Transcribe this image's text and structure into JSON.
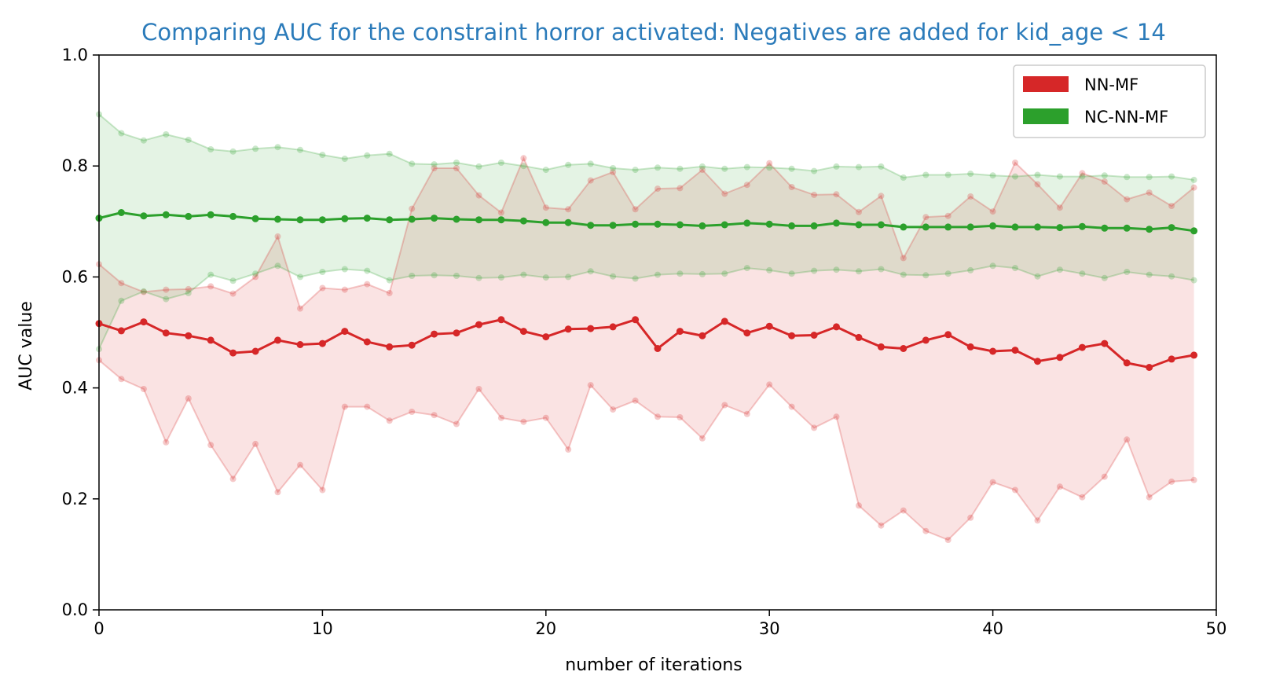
{
  "colors": {
    "nn_mf": "#d62728",
    "nc_nn_mf": "#2ca02c",
    "title": "#2b7bba",
    "axis": "#000000"
  },
  "chart_data": {
    "type": "line",
    "title": "Comparing AUC for the constraint horror activated: Negatives are added for kid_age < 14",
    "xlabel": "number of iterations",
    "ylabel": "AUC value",
    "xlim": [
      0,
      50
    ],
    "ylim": [
      0.0,
      1.0
    ],
    "xticks": [
      0,
      10,
      20,
      30,
      40,
      50
    ],
    "xtick_labels": [
      "0",
      "10",
      "20",
      "30",
      "40",
      "50"
    ],
    "yticks": [
      0.0,
      0.2,
      0.4,
      0.6,
      0.8,
      1.0
    ],
    "ytick_labels": [
      "0.0",
      "0.2",
      "0.4",
      "0.6",
      "0.8",
      "1.0"
    ],
    "grid": false,
    "legend_position": "top-right",
    "x": [
      0,
      1,
      2,
      3,
      4,
      5,
      6,
      7,
      8,
      9,
      10,
      11,
      12,
      13,
      14,
      15,
      16,
      17,
      18,
      19,
      20,
      21,
      22,
      23,
      24,
      25,
      26,
      27,
      28,
      29,
      30,
      31,
      32,
      33,
      34,
      35,
      36,
      37,
      38,
      39,
      40,
      41,
      42,
      43,
      44,
      45,
      46,
      47,
      48,
      49
    ],
    "series": [
      {
        "name": "NN-MF",
        "color": "#d62728",
        "mean": [
          0.516,
          0.503,
          0.519,
          0.499,
          0.494,
          0.486,
          0.463,
          0.466,
          0.486,
          0.478,
          0.48,
          0.502,
          0.483,
          0.474,
          0.477,
          0.497,
          0.499,
          0.514,
          0.523,
          0.502,
          0.492,
          0.506,
          0.507,
          0.51,
          0.523,
          0.471,
          0.502,
          0.494,
          0.52,
          0.499,
          0.511,
          0.494,
          0.495,
          0.51,
          0.491,
          0.474,
          0.471,
          0.486,
          0.496,
          0.474,
          0.466,
          0.468,
          0.448,
          0.455,
          0.473,
          0.48,
          0.445,
          0.437,
          0.452,
          0.459
        ],
        "upper": [
          0.623,
          0.589,
          0.573,
          0.577,
          0.578,
          0.583,
          0.57,
          0.6,
          0.673,
          0.543,
          0.58,
          0.577,
          0.587,
          0.571,
          0.723,
          0.796,
          0.796,
          0.747,
          0.716,
          0.814,
          0.725,
          0.722,
          0.774,
          0.789,
          0.722,
          0.759,
          0.76,
          0.793,
          0.75,
          0.766,
          0.805,
          0.762,
          0.748,
          0.749,
          0.717,
          0.746,
          0.634,
          0.708,
          0.71,
          0.745,
          0.718,
          0.806,
          0.767,
          0.725,
          0.787,
          0.772,
          0.74,
          0.752,
          0.728,
          0.761
        ],
        "lower": [
          0.45,
          0.416,
          0.398,
          0.302,
          0.381,
          0.297,
          0.236,
          0.299,
          0.212,
          0.261,
          0.216,
          0.366,
          0.366,
          0.341,
          0.357,
          0.351,
          0.335,
          0.398,
          0.346,
          0.339,
          0.346,
          0.289,
          0.405,
          0.361,
          0.377,
          0.348,
          0.347,
          0.309,
          0.369,
          0.353,
          0.406,
          0.366,
          0.328,
          0.348,
          0.188,
          0.152,
          0.179,
          0.142,
          0.126,
          0.166,
          0.23,
          0.216,
          0.161,
          0.222,
          0.203,
          0.24,
          0.307,
          0.203,
          0.231,
          0.234
        ]
      },
      {
        "name": "NC-NN-MF",
        "color": "#2ca02c",
        "mean": [
          0.706,
          0.716,
          0.71,
          0.712,
          0.709,
          0.712,
          0.709,
          0.705,
          0.704,
          0.703,
          0.703,
          0.705,
          0.706,
          0.703,
          0.704,
          0.706,
          0.704,
          0.703,
          0.703,
          0.701,
          0.698,
          0.698,
          0.693,
          0.693,
          0.695,
          0.695,
          0.694,
          0.692,
          0.694,
          0.697,
          0.695,
          0.692,
          0.692,
          0.697,
          0.694,
          0.694,
          0.69,
          0.69,
          0.69,
          0.69,
          0.692,
          0.69,
          0.69,
          0.689,
          0.691,
          0.688,
          0.688,
          0.686,
          0.689,
          0.683
        ],
        "upper": [
          0.893,
          0.859,
          0.846,
          0.857,
          0.847,
          0.83,
          0.826,
          0.831,
          0.834,
          0.829,
          0.82,
          0.813,
          0.819,
          0.822,
          0.804,
          0.803,
          0.806,
          0.799,
          0.806,
          0.8,
          0.793,
          0.802,
          0.804,
          0.796,
          0.793,
          0.797,
          0.795,
          0.799,
          0.795,
          0.798,
          0.797,
          0.795,
          0.791,
          0.799,
          0.798,
          0.799,
          0.779,
          0.784,
          0.784,
          0.786,
          0.783,
          0.781,
          0.784,
          0.781,
          0.781,
          0.783,
          0.78,
          0.78,
          0.781,
          0.775
        ],
        "lower": [
          0.47,
          0.557,
          0.574,
          0.56,
          0.571,
          0.604,
          0.593,
          0.606,
          0.62,
          0.6,
          0.609,
          0.614,
          0.611,
          0.594,
          0.602,
          0.603,
          0.602,
          0.598,
          0.599,
          0.604,
          0.599,
          0.6,
          0.61,
          0.601,
          0.597,
          0.604,
          0.606,
          0.605,
          0.606,
          0.616,
          0.612,
          0.606,
          0.611,
          0.613,
          0.61,
          0.614,
          0.604,
          0.603,
          0.606,
          0.612,
          0.62,
          0.616,
          0.601,
          0.613,
          0.606,
          0.598,
          0.609,
          0.604,
          0.601,
          0.594
        ]
      }
    ]
  }
}
